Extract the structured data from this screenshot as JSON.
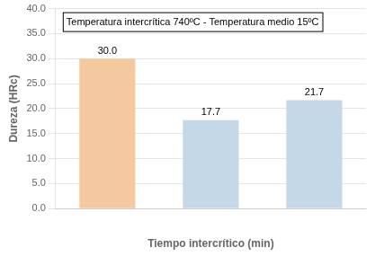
{
  "chart_data": {
    "type": "bar",
    "categories": [
      null,
      null,
      null
    ],
    "values": [
      30.0,
      17.7,
      21.7
    ],
    "value_labels": [
      "30.0",
      "17.7",
      "21.7"
    ],
    "data_labels": true,
    "colors": [
      "#F5C9A0",
      "#C5D8E8",
      "#C5D8E8"
    ],
    "annotation": "Temperatura intercrítica 740ºC - Temperatura medio 15ºC",
    "xlabel": "Tiempo intercrítico (min)",
    "ylabel": "Dureza (HRc)",
    "ylim": [
      0,
      40.0
    ],
    "yticks": [
      {
        "value": 0,
        "label": "0.0"
      },
      {
        "value": 5,
        "label": "5.0"
      },
      {
        "value": 10,
        "label": "10.0"
      },
      {
        "value": 15,
        "label": "15.0"
      },
      {
        "value": 20,
        "label": "20.0"
      },
      {
        "value": 25,
        "label": "25.0"
      },
      {
        "value": 30,
        "label": "30.0"
      },
      {
        "value": 35,
        "label": "35.0"
      },
      {
        "value": 40,
        "label": "40.0"
      }
    ],
    "grid": true
  }
}
